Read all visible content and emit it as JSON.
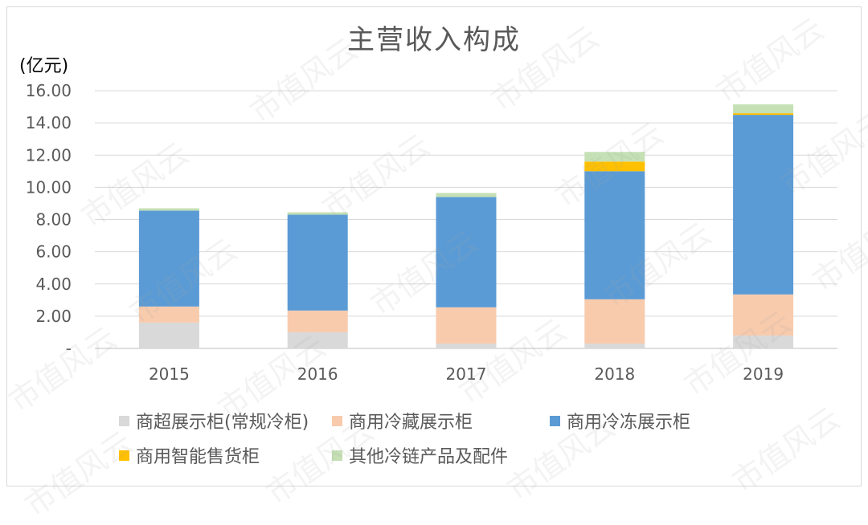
{
  "chart_data": {
    "type": "bar",
    "stacked": true,
    "title": "主营收入构成",
    "unit_label": "(亿元)",
    "categories": [
      "2015",
      "2016",
      "2017",
      "2018",
      "2019"
    ],
    "ylim": [
      0,
      16
    ],
    "yticks": [
      "-",
      "2.00",
      "4.00",
      "6.00",
      "8.00",
      "10.00",
      "12.00",
      "14.00",
      "16.00"
    ],
    "grid": true,
    "legend_position": "bottom",
    "series": [
      {
        "name": "商超展示柜(常规冷柜)",
        "color": "#d9d9d9",
        "values": [
          1.6,
          1.0,
          0.3,
          0.3,
          0.8
        ]
      },
      {
        "name": "商用冷藏展示柜",
        "color": "#f8cbad",
        "values": [
          1.0,
          1.35,
          2.25,
          2.75,
          2.55
        ]
      },
      {
        "name": "商用冷冻展示柜",
        "color": "#5b9bd5",
        "values": [
          5.95,
          5.95,
          6.85,
          7.95,
          11.15
        ]
      },
      {
        "name": "商用智能售货柜",
        "color": "#ffc000",
        "values": [
          0,
          0,
          0,
          0.6,
          0.1
        ]
      },
      {
        "name": "其他冷链产品及配件",
        "color": "#c5e0b4",
        "values": [
          0.15,
          0.15,
          0.25,
          0.6,
          0.55
        ]
      }
    ]
  },
  "watermark": "市值风云"
}
